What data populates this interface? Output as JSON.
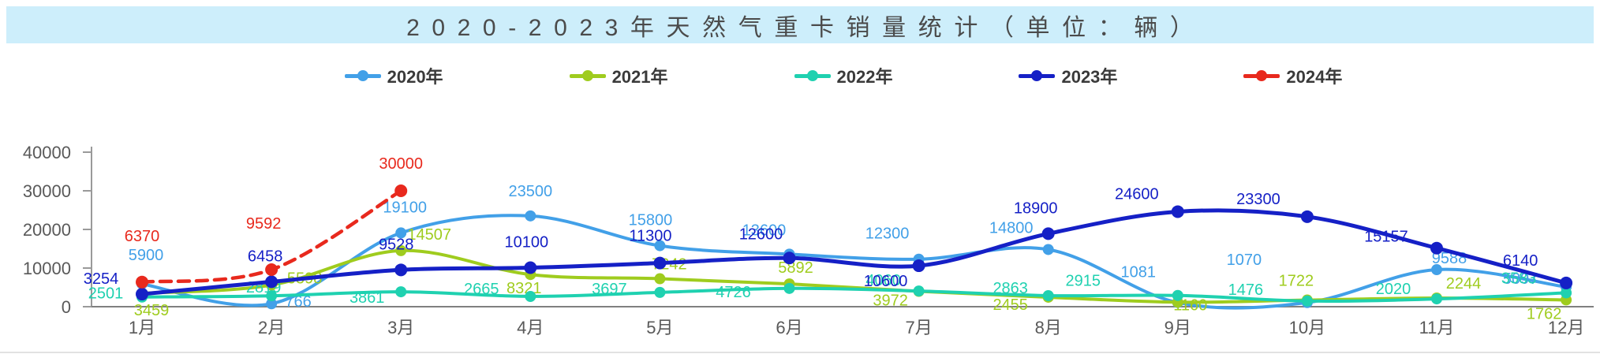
{
  "title": {
    "text": "2020-2023年天然气重卡销量统计（单位：辆）"
  },
  "chart_data": {
    "type": "line",
    "title": "2020-2023年天然气重卡销量统计（单位：辆）",
    "categories": [
      "1月",
      "2月",
      "3月",
      "4月",
      "5月",
      "6月",
      "7月",
      "8月",
      "9月",
      "10月",
      "11月",
      "12月"
    ],
    "yticks": [
      0,
      10000,
      20000,
      30000,
      40000
    ],
    "ylim": [
      0,
      40000
    ],
    "grid": false,
    "legend_position": "top",
    "axis_color": "#595959",
    "series": [
      {
        "name": "2020年",
        "color": "#42A0E8",
        "style": "solid",
        "values": [
          5900,
          766,
          19100,
          23500,
          15800,
          13600,
          12300,
          14800,
          1081,
          1070,
          9588,
          5097
        ]
      },
      {
        "name": "2021年",
        "color": "#9FCC1E",
        "style": "solid",
        "values": [
          3459,
          5598,
          14507,
          8321,
          7242,
          5892,
          3972,
          2455,
          1160,
          1722,
          2244,
          1762
        ]
      },
      {
        "name": "2022年",
        "color": "#1FD1B0",
        "style": "solid",
        "values": [
          2501,
          2819,
          3861,
          2665,
          3697,
          4726,
          4060,
          2863,
          2915,
          1476,
          2020,
          3583
        ]
      },
      {
        "name": "2023年",
        "color": "#1520C6",
        "style": "solid",
        "values": [
          3254,
          6458,
          9528,
          10100,
          11300,
          12600,
          10600,
          18900,
          24600,
          23300,
          15157,
          6140
        ]
      },
      {
        "name": "2024年",
        "color": "#E8291D",
        "style": "dashed",
        "values": [
          6370,
          9592,
          30000
        ]
      }
    ]
  }
}
